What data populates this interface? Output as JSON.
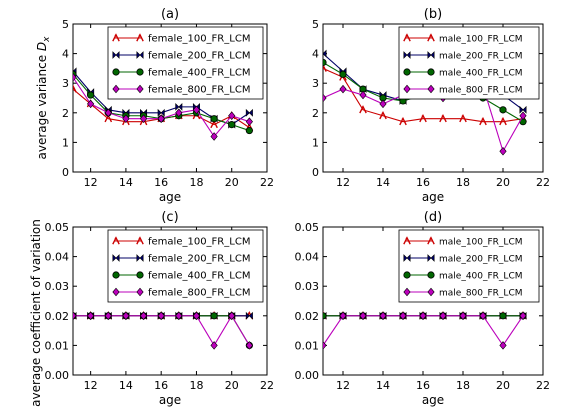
{
  "chart_data": [
    {
      "type": "line",
      "title": "(a)",
      "xlabel": "age",
      "ylabel": "average variance D_x",
      "xlim": [
        11,
        22
      ],
      "ylim": [
        0,
        5
      ],
      "xticks": [
        12,
        14,
        16,
        18,
        20,
        22
      ],
      "yticks": [
        0,
        1,
        2,
        3,
        4,
        5
      ],
      "x": [
        11,
        12,
        13,
        14,
        15,
        16,
        17,
        18,
        19,
        20,
        21
      ],
      "legend_position": "upper-right",
      "series": [
        {
          "name": "female_100_FR_LCM",
          "color": "#cc0000",
          "marker": "tri",
          "values": [
            2.8,
            2.3,
            1.8,
            1.7,
            1.7,
            1.8,
            1.9,
            1.9,
            1.6,
            1.9,
            1.5
          ]
        },
        {
          "name": "female_200_FR_LCM",
          "color": "#000066",
          "marker": "bowtie",
          "values": [
            3.4,
            2.7,
            2.1,
            2.0,
            2.0,
            2.0,
            2.2,
            2.2,
            1.8,
            1.6,
            2.0
          ]
        },
        {
          "name": "female_400_FR_LCM",
          "color": "#006600",
          "marker": "circle",
          "values": [
            3.3,
            2.6,
            2.0,
            1.9,
            1.9,
            1.8,
            1.9,
            2.0,
            1.8,
            1.6,
            1.4
          ]
        },
        {
          "name": "female_800_FR_LCM",
          "color": "#bb00bb",
          "marker": "diamond",
          "values": [
            3.2,
            2.3,
            2.0,
            1.8,
            1.8,
            1.8,
            2.0,
            2.1,
            1.2,
            1.9,
            1.7
          ]
        }
      ]
    },
    {
      "type": "line",
      "title": "(b)",
      "xlabel": "age",
      "ylabel": "",
      "xlim": [
        11,
        22
      ],
      "ylim": [
        0,
        5
      ],
      "xticks": [
        12,
        14,
        16,
        18,
        20,
        22
      ],
      "yticks": [
        0,
        1,
        2,
        3,
        4,
        5
      ],
      "x": [
        11,
        12,
        13,
        14,
        15,
        16,
        17,
        18,
        19,
        20,
        21
      ],
      "legend_position": "upper-right",
      "series": [
        {
          "name": "male_100_FR_LCM",
          "color": "#cc0000",
          "marker": "tri",
          "values": [
            3.5,
            3.2,
            2.1,
            1.9,
            1.7,
            1.8,
            1.8,
            1.8,
            1.7,
            1.7,
            1.8
          ]
        },
        {
          "name": "male_200_FR_LCM",
          "color": "#000066",
          "marker": "bowtie",
          "values": [
            4.0,
            3.4,
            2.8,
            2.6,
            2.4,
            2.6,
            2.7,
            2.7,
            2.6,
            2.6,
            2.1
          ]
        },
        {
          "name": "male_400_FR_LCM",
          "color": "#006600",
          "marker": "circle",
          "values": [
            3.7,
            3.3,
            2.8,
            2.5,
            2.4,
            2.6,
            2.7,
            2.6,
            2.5,
            2.1,
            1.7
          ]
        },
        {
          "name": "male_800_FR_LCM",
          "color": "#bb00bb",
          "marker": "diamond",
          "values": [
            2.5,
            2.8,
            2.6,
            2.3,
            2.6,
            2.6,
            2.5,
            2.6,
            2.9,
            0.7,
            1.9
          ]
        }
      ]
    },
    {
      "type": "line",
      "title": "(c)",
      "xlabel": "age",
      "ylabel": "average coefficient of variation",
      "xlim": [
        11,
        22
      ],
      "ylim": [
        0,
        0.05
      ],
      "xticks": [
        12,
        14,
        16,
        18,
        20,
        22
      ],
      "yticks": [
        "0.00",
        "0.01",
        "0.02",
        "0.03",
        "0.04",
        "0.05"
      ],
      "x": [
        11,
        12,
        13,
        14,
        15,
        16,
        17,
        18,
        19,
        20,
        21
      ],
      "legend_position": "upper-right",
      "series": [
        {
          "name": "female_100_FR_LCM",
          "color": "#cc0000",
          "marker": "tri",
          "values": [
            0.02,
            0.02,
            0.02,
            0.02,
            0.02,
            0.02,
            0.02,
            0.02,
            0.02,
            0.02,
            0.02
          ]
        },
        {
          "name": "female_200_FR_LCM",
          "color": "#000066",
          "marker": "bowtie",
          "values": [
            0.02,
            0.02,
            0.02,
            0.02,
            0.02,
            0.02,
            0.02,
            0.02,
            0.02,
            0.02,
            0.02
          ]
        },
        {
          "name": "female_400_FR_LCM",
          "color": "#006600",
          "marker": "circle",
          "values": [
            0.02,
            0.02,
            0.02,
            0.02,
            0.02,
            0.02,
            0.02,
            0.02,
            0.02,
            0.02,
            0.01
          ]
        },
        {
          "name": "female_800_FR_LCM",
          "color": "#bb00bb",
          "marker": "diamond",
          "values": [
            0.02,
            0.02,
            0.02,
            0.02,
            0.02,
            0.02,
            0.02,
            0.02,
            0.01,
            0.02,
            0.01
          ]
        }
      ]
    },
    {
      "type": "line",
      "title": "(d)",
      "xlabel": "age",
      "ylabel": "",
      "xlim": [
        11,
        22
      ],
      "ylim": [
        0,
        0.05
      ],
      "xticks": [
        12,
        14,
        16,
        18,
        20,
        22
      ],
      "yticks": [
        "0.00",
        "0.01",
        "0.02",
        "0.03",
        "0.04",
        "0.05"
      ],
      "x": [
        11,
        12,
        13,
        14,
        15,
        16,
        17,
        18,
        19,
        20,
        21
      ],
      "legend_position": "upper-right",
      "series": [
        {
          "name": "male_100_FR_LCM",
          "color": "#cc0000",
          "marker": "tri",
          "values": [
            0.02,
            0.02,
            0.02,
            0.02,
            0.02,
            0.02,
            0.02,
            0.02,
            0.02,
            0.02,
            0.02
          ]
        },
        {
          "name": "male_200_FR_LCM",
          "color": "#000066",
          "marker": "bowtie",
          "values": [
            0.02,
            0.02,
            0.02,
            0.02,
            0.02,
            0.02,
            0.02,
            0.02,
            0.02,
            0.02,
            0.02
          ]
        },
        {
          "name": "male_400_FR_LCM",
          "color": "#006600",
          "marker": "circle",
          "values": [
            0.02,
            0.02,
            0.02,
            0.02,
            0.02,
            0.02,
            0.02,
            0.02,
            0.02,
            0.02,
            0.02
          ]
        },
        {
          "name": "male_800_FR_LCM",
          "color": "#bb00bb",
          "marker": "diamond",
          "values": [
            0.01,
            0.02,
            0.02,
            0.02,
            0.02,
            0.02,
            0.02,
            0.02,
            0.02,
            0.01,
            0.02
          ]
        }
      ]
    }
  ]
}
